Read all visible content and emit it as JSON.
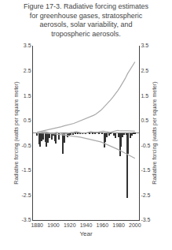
{
  "chart_data": {
    "type": "bar",
    "title": "Figure 17-3. Radiative forcing estimates for greenhouse gases, stratospheric aerosols, solar variability, and tropospheric aerosols.",
    "xlabel": "Year",
    "ylabel": "Radiative forcing (watts per square meter)",
    "y2label": "Radiative forcing (watts per square meter)",
    "x": [
      1880,
      1883,
      1886,
      1889,
      1892,
      1895,
      1898,
      1901,
      1904,
      1907,
      1910,
      1913,
      1916,
      1919,
      1922,
      1925,
      1928,
      1931,
      1934,
      1937,
      1940,
      1943,
      1946,
      1949,
      1952,
      1955,
      1958,
      1961,
      1964,
      1967,
      1970,
      1973,
      1976,
      1979,
      1982,
      1985,
      1988,
      1991,
      1994,
      1997,
      2000
    ],
    "xlim": [
      1875,
      2005
    ],
    "xticks": [
      1880,
      1900,
      1920,
      1940,
      1960,
      1980,
      2000
    ],
    "ylim": [
      -3.5,
      3.5
    ],
    "yticks": [
      3.5,
      2.5,
      1.5,
      0.5,
      -0.5,
      -1.5,
      -2.5,
      -3.5
    ],
    "y2lim": [
      -3.5,
      3.5
    ],
    "y2ticks": [
      3.5,
      2.5,
      1.5,
      0.5,
      -0.5,
      -1.5,
      -2.5,
      -3.5
    ],
    "grid": false,
    "series": [
      {
        "type": "bar",
        "color": "#333333",
        "x": [
          1880,
          1883,
          1884,
          1886,
          1888,
          1890,
          1891,
          1893,
          1895,
          1898,
          1900,
          1902,
          1903,
          1907,
          1912,
          1914,
          1917,
          1919,
          1921,
          1924,
          1927,
          1930,
          1933,
          1936,
          1940,
          1944,
          1948,
          1951,
          1956,
          1960,
          1963,
          1964,
          1966,
          1968,
          1970,
          1974,
          1976,
          1980,
          1982,
          1983,
          1985,
          1987,
          1990,
          1991,
          1992,
          1994,
          1996,
          1998,
          2000
        ],
        "values": [
          -0.12,
          -0.45,
          -0.55,
          -0.32,
          -0.28,
          -0.35,
          -0.55,
          -0.38,
          -0.22,
          -0.28,
          -0.12,
          -0.32,
          -0.42,
          -0.28,
          -0.85,
          -0.38,
          -0.18,
          -0.1,
          -0.08,
          -0.08,
          -0.06,
          -0.06,
          -0.06,
          -0.05,
          -0.05,
          -0.05,
          -0.05,
          -0.05,
          -0.05,
          -0.06,
          -0.6,
          -0.35,
          -0.18,
          -0.1,
          -0.06,
          -0.1,
          -0.22,
          -0.18,
          -0.95,
          -0.55,
          -0.18,
          -0.08,
          -0.08,
          -2.6,
          -0.85,
          -0.22,
          -0.1,
          -0.06,
          -0.05
        ]
      },
      {
        "type": "line",
        "color": "#aaaaaa",
        "values": [
          0.03,
          0.05,
          0.07,
          0.09,
          0.11,
          0.13,
          0.15,
          0.18,
          0.2,
          0.22,
          0.25,
          0.28,
          0.3,
          0.32,
          0.35,
          0.38,
          0.42,
          0.46,
          0.5,
          0.53,
          0.56,
          0.6,
          0.65,
          0.7,
          0.75,
          0.82,
          0.9,
          1.0,
          1.1,
          1.2,
          1.32,
          1.44,
          1.56,
          1.7,
          1.85,
          2.0,
          2.18,
          2.38,
          2.55,
          2.7,
          2.85
        ]
      },
      {
        "type": "line",
        "color": "#aaaaaa",
        "values": [
          -0.02,
          0.0,
          0.03,
          0.05,
          0.03,
          0.0,
          -0.02,
          0.0,
          0.02,
          0.0,
          -0.03,
          -0.05,
          -0.03,
          0.0,
          0.02,
          0.03,
          0.05,
          0.03,
          0.0,
          -0.02,
          0.0,
          0.03,
          0.05,
          0.03,
          0.02,
          0.03,
          0.05,
          0.07,
          0.05,
          0.03,
          0.02,
          0.05,
          0.08,
          0.1,
          0.08,
          0.07,
          0.08,
          0.08,
          0.07,
          0.07,
          0.07
        ]
      },
      {
        "type": "line",
        "color": "#aaaaaa",
        "values": [
          0.0,
          0.0,
          -0.01,
          -0.01,
          -0.02,
          -0.02,
          -0.03,
          -0.04,
          -0.05,
          -0.06,
          -0.07,
          -0.08,
          -0.09,
          -0.1,
          -0.11,
          -0.12,
          -0.14,
          -0.16,
          -0.18,
          -0.2,
          -0.22,
          -0.24,
          -0.26,
          -0.28,
          -0.3,
          -0.33,
          -0.36,
          -0.4,
          -0.44,
          -0.48,
          -0.52,
          -0.56,
          -0.61,
          -0.66,
          -0.71,
          -0.76,
          -0.82,
          -0.88,
          -0.93,
          -0.97,
          -1.02
        ]
      }
    ]
  }
}
